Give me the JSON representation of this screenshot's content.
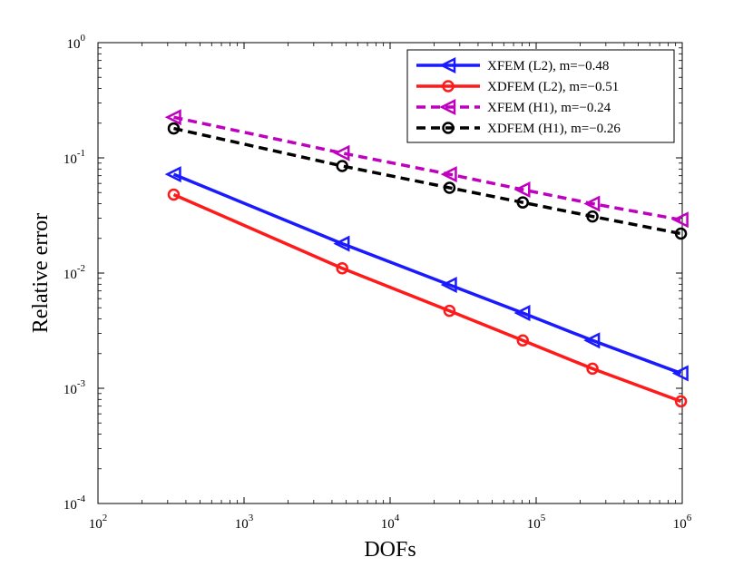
{
  "chart_data": {
    "type": "line",
    "xscale": "log",
    "yscale": "log",
    "xlabel": "DOFs",
    "ylabel": "Relative error",
    "xlim": [
      100,
      1000000
    ],
    "ylim": [
      0.0001,
      1
    ],
    "x_ticks": [
      {
        "base": "10",
        "exp": "2"
      },
      {
        "base": "10",
        "exp": "3"
      },
      {
        "base": "10",
        "exp": "4"
      },
      {
        "base": "10",
        "exp": "5"
      },
      {
        "base": "10",
        "exp": "6"
      }
    ],
    "y_ticks": [
      {
        "base": "10",
        "exp": "-4"
      },
      {
        "base": "10",
        "exp": "-3"
      },
      {
        "base": "10",
        "exp": "-2"
      },
      {
        "base": "10",
        "exp": "-1"
      },
      {
        "base": "10",
        "exp": "0"
      }
    ],
    "legend_position": "top-right",
    "series": [
      {
        "name": "XFEM (L2), m=−0.48",
        "color": "#1a1aff",
        "dashed": false,
        "marker": "triangle-left",
        "x": [
          330,
          4700,
          25500,
          81000,
          243000,
          980000
        ],
        "y": [
          0.072,
          0.018,
          0.0079,
          0.0045,
          0.0026,
          0.00135
        ]
      },
      {
        "name": "XDFEM (L2), m=−0.51",
        "color": "#ff1a1a",
        "dashed": false,
        "marker": "circle",
        "x": [
          330,
          4700,
          25500,
          81000,
          243000,
          980000
        ],
        "y": [
          0.048,
          0.011,
          0.0047,
          0.0026,
          0.00148,
          0.00077
        ]
      },
      {
        "name": "XFEM (H1), m=−0.24",
        "color": "#bf00bf",
        "dashed": true,
        "marker": "triangle-left",
        "x": [
          330,
          4700,
          25500,
          81000,
          243000,
          980000
        ],
        "y": [
          0.225,
          0.11,
          0.072,
          0.053,
          0.04,
          0.029
        ]
      },
      {
        "name": "XDFEM (H1), m=−0.26",
        "color": "#000000",
        "dashed": true,
        "marker": "circle",
        "x": [
          330,
          4700,
          25500,
          81000,
          243000,
          980000
        ],
        "y": [
          0.18,
          0.085,
          0.055,
          0.041,
          0.031,
          0.022
        ]
      }
    ]
  }
}
